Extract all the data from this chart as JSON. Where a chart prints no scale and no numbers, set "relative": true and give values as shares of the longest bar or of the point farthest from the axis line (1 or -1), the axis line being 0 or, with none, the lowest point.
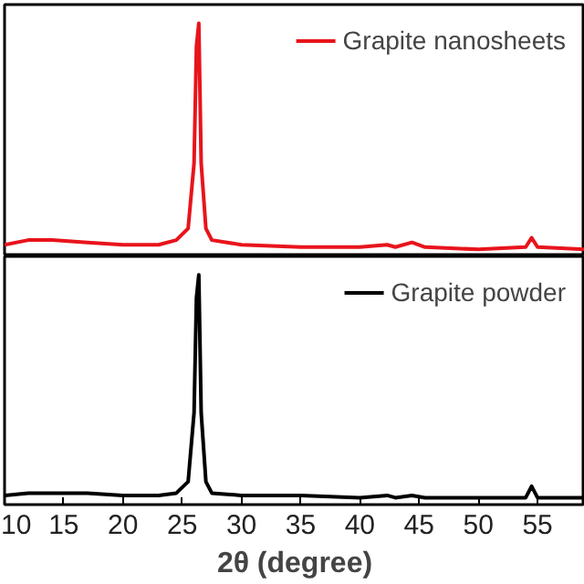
{
  "chart_data": [
    {
      "type": "line",
      "relative": true,
      "xlim": [
        10,
        59
      ],
      "xticks": [
        10,
        15,
        20,
        25,
        30,
        35,
        40,
        45,
        50,
        55
      ],
      "tick_labels": false,
      "legend": "top right",
      "grid": false,
      "x": [
        10,
        12,
        14,
        17,
        20,
        23,
        24.5,
        25.5,
        26,
        26.2,
        26.4,
        26.6,
        27,
        27.5,
        30,
        35,
        40,
        42.3,
        43,
        44.4,
        45.5,
        50,
        54,
        54.5,
        55,
        59
      ],
      "series": [
        {
          "name": "Grapite nanosheets",
          "color": "#e8141c",
          "values": [
            0.05,
            0.07,
            0.07,
            0.06,
            0.05,
            0.05,
            0.07,
            0.12,
            0.4,
            0.9,
            1.0,
            0.4,
            0.12,
            0.07,
            0.05,
            0.04,
            0.04,
            0.05,
            0.04,
            0.06,
            0.04,
            0.03,
            0.04,
            0.08,
            0.04,
            0.03
          ]
        }
      ]
    },
    {
      "type": "line",
      "relative": true,
      "xlim": [
        10,
        59
      ],
      "xticks": [
        10,
        15,
        20,
        25,
        30,
        35,
        40,
        45,
        50,
        55
      ],
      "tick_labels": "x",
      "xlabel": "2θ (degree)",
      "legend": "top right",
      "grid": false,
      "x": [
        10,
        12,
        14,
        17,
        20,
        23,
        24.5,
        25.5,
        26,
        26.2,
        26.4,
        26.6,
        27,
        27.5,
        30,
        35,
        40,
        42.3,
        43,
        44.4,
        45.5,
        50,
        54,
        54.5,
        55,
        59
      ],
      "series": [
        {
          "name": "Grapite powder",
          "color": "#000000",
          "values": [
            0.04,
            0.05,
            0.05,
            0.05,
            0.04,
            0.04,
            0.05,
            0.1,
            0.4,
            0.9,
            1.0,
            0.4,
            0.1,
            0.05,
            0.04,
            0.04,
            0.03,
            0.04,
            0.03,
            0.04,
            0.03,
            0.03,
            0.03,
            0.08,
            0.03,
            0.03
          ]
        }
      ]
    }
  ]
}
